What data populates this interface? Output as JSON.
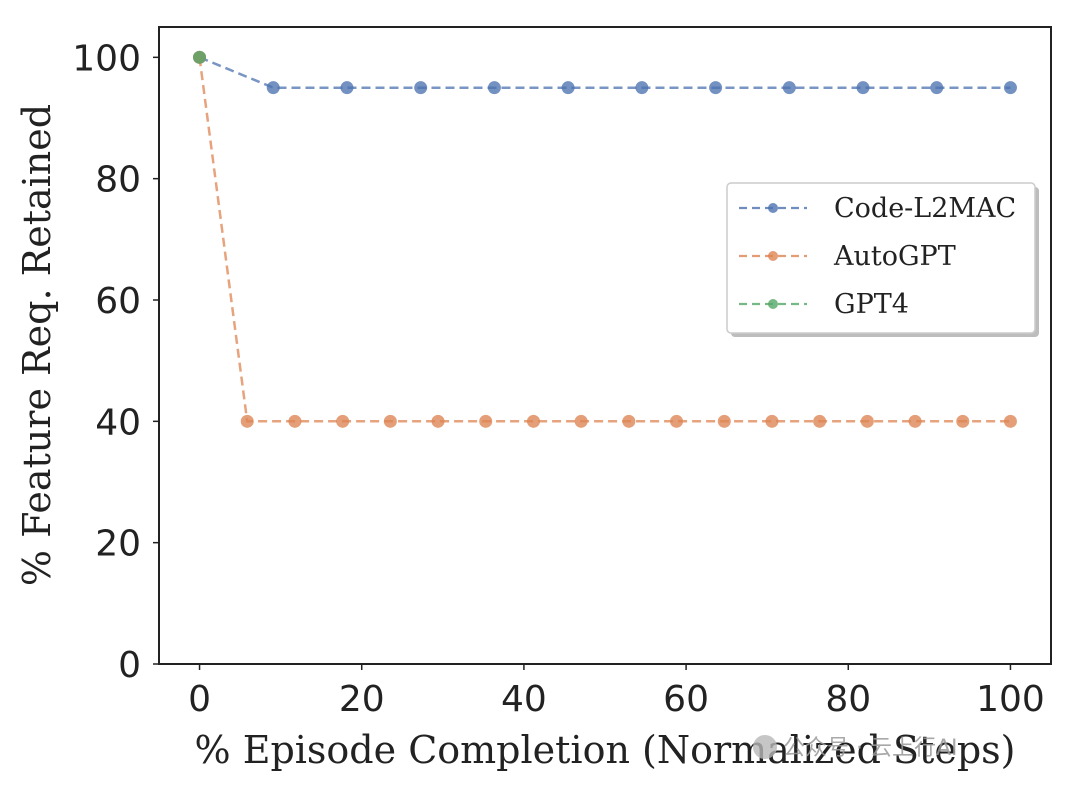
{
  "chart_data": {
    "type": "line",
    "title": "",
    "xlabel": "% Episode Completion (Normalized Steps)",
    "ylabel": "% Feature Req. Retained",
    "xlim": [
      -5,
      105
    ],
    "ylim": [
      0,
      105
    ],
    "xticks": [
      0,
      20,
      40,
      60,
      80,
      100
    ],
    "yticks": [
      0,
      20,
      40,
      60,
      80,
      100
    ],
    "grid": false,
    "legend_position": "center-right",
    "series": [
      {
        "name": "Code-L2MAC",
        "color": "#4c72b0",
        "line_style": "dashed",
        "x": [
          0,
          9.09,
          18.18,
          27.27,
          36.36,
          45.45,
          54.55,
          63.64,
          72.73,
          81.82,
          90.91,
          100
        ],
        "y": [
          100,
          95,
          95,
          95,
          95,
          95,
          95,
          95,
          95,
          95,
          95,
          95
        ]
      },
      {
        "name": "AutoGPT",
        "color": "#dd8452",
        "line_style": "dashed",
        "x": [
          0,
          5.88,
          11.76,
          17.65,
          23.53,
          29.41,
          35.29,
          41.18,
          47.06,
          52.94,
          58.82,
          64.71,
          70.59,
          76.47,
          82.35,
          88.24,
          94.12,
          100
        ],
        "y": [
          100,
          40,
          40,
          40,
          40,
          40,
          40,
          40,
          40,
          40,
          40,
          40,
          40,
          40,
          40,
          40,
          40,
          40
        ]
      },
      {
        "name": "GPT4",
        "color": "#55a868",
        "line_style": "dashed",
        "x": [
          0
        ],
        "y": [
          100
        ]
      }
    ]
  },
  "watermark": {
    "text": "公众号 · 云上行AI"
  }
}
